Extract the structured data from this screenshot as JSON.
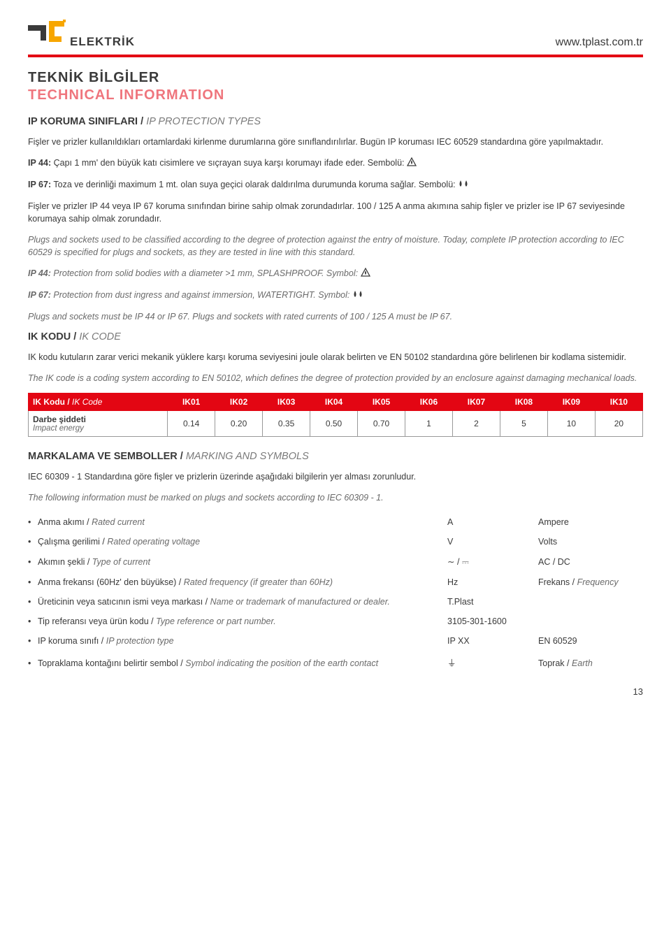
{
  "header": {
    "brand": "ELEKTRİK",
    "url": "www.tplast.com.tr",
    "accent_color": "#e30613"
  },
  "title": {
    "tr": "TEKNİK BİLGİLER",
    "en": "TECHNICAL INFORMATION"
  },
  "section1": {
    "heading_tr": "IP KORUMA SINIFLARI",
    "heading_en": "IP PROTECTION TYPES",
    "p1": "Fişler ve prizler kullanıldıkları ortamlardaki kirlenme durumlarına göre sınıflandırılırlar. Bugün IP koruması IEC 60529 standardına göre yapılmaktadır.",
    "ip44_label": "IP 44:",
    "ip44_text": " Çapı 1 mm' den büyük katı cisimlere ve sıçrayan suya karşı korumayı ifade eder. Sembolü: ",
    "ip67_label": "IP 67:",
    "ip67_text": " Toza ve derinliği maximum 1 mt. olan suya geçici olarak daldırılma durumunda koruma sağlar. Sembolü: ",
    "p3": "Fişler ve prizler IP 44 veya IP 67 koruma sınıfından birine sahip olmak zorundadırlar. 100 / 125 A anma akımına sahip fişler ve prizler ise IP 67 seviyesinde korumaya sahip olmak zorundadır.",
    "p4_en": "Plugs and sockets used to be classified according to the degree of protection against the entry of moisture. Today, complete IP protection according to IEC 60529 is specified for plugs and sockets, as they are tested in line with this standard.",
    "ip44_en_label": "IP 44:",
    "ip44_en_text": " Protection from solid bodies with a diameter >1 mm, SPLASHPROOF. Symbol: ",
    "ip67_en_label": "IP 67:",
    "ip67_en_text": " Protection from dust ingress and against immersion, WATERTIGHT. Symbol: ",
    "p7_en": "Plugs and sockets must be IP 44 or IP 67. Plugs and sockets with rated currents of 100 / 125 A must be IP 67."
  },
  "section2": {
    "heading_tr": "IK KODU",
    "heading_en": "IK CODE",
    "p1": "IK kodu kutuların zarar verici mekanik yüklere karşı koruma seviyesini joule olarak belirten ve EN 50102 standardına göre belirlenen bir kodlama sistemidir.",
    "p2_en": "The IK code is a coding system according to EN 50102, which defines the degree of protection provided by an enclosure against damaging mechanical loads.",
    "table": {
      "col0_tr": "IK Kodu",
      "col0_en": "IK Code",
      "row0_tr": "Darbe şiddeti",
      "row0_en": "Impact energy",
      "cols": [
        "IK01",
        "IK02",
        "IK03",
        "IK04",
        "IK05",
        "IK06",
        "IK07",
        "IK08",
        "IK09",
        "IK10"
      ],
      "vals": [
        "0.14",
        "0.20",
        "0.35",
        "0.50",
        "0.70",
        "1",
        "2",
        "5",
        "10",
        "20"
      ]
    }
  },
  "section3": {
    "heading_tr": "MARKALAMA VE SEMBOLLER",
    "heading_en": "MARKING AND SYMBOLS",
    "p1": "IEC 60309 - 1 Standardına göre fişler ve prizlerin üzerinde aşağıdaki bilgilerin yer alması zorunludur.",
    "p2_en": "The following information must be marked on plugs and sockets according to IEC 60309 - 1.",
    "items": [
      {
        "tr": "Anma akımı",
        "en": "Rated current",
        "sym": "A",
        "unit_tr": "Ampere",
        "unit_en": ""
      },
      {
        "tr": "Çalışma gerilimi",
        "en": "Rated operating voltage",
        "sym": "V",
        "unit_tr": "Volts",
        "unit_en": ""
      },
      {
        "tr": "Akımın şekli",
        "en": "Type of current",
        "sym": "∼ / ⎓",
        "unit_tr": "AC / DC",
        "unit_en": ""
      },
      {
        "tr": "Anma frekansı (60Hz' den büyükse)",
        "en": "Rated frequency  (if greater than 60Hz)",
        "sym": "Hz",
        "unit_tr": "Frekans",
        "unit_en": "Frequency"
      },
      {
        "tr": "Üreticinin veya satıcının ismi veya markası",
        "en": "Name or trademark of manufactured or dealer.",
        "sym": "T.Plast",
        "unit_tr": "",
        "unit_en": ""
      },
      {
        "tr": "Tip referansı veya ürün kodu",
        "en": "Type reference or part number.",
        "sym": "3105-301-1600",
        "unit_tr": "",
        "unit_en": ""
      },
      {
        "tr": "IP koruma sınıfı",
        "en": "IP protection type",
        "sym": "IP XX",
        "unit_tr": "EN 60529",
        "unit_en": ""
      },
      {
        "tr": "Topraklama kontağını belirtir sembol",
        "en": "Symbol indicating the position of the earth contact",
        "sym": "⏚",
        "unit_tr": "Toprak",
        "unit_en": "Earth"
      }
    ]
  },
  "page_number": "13"
}
